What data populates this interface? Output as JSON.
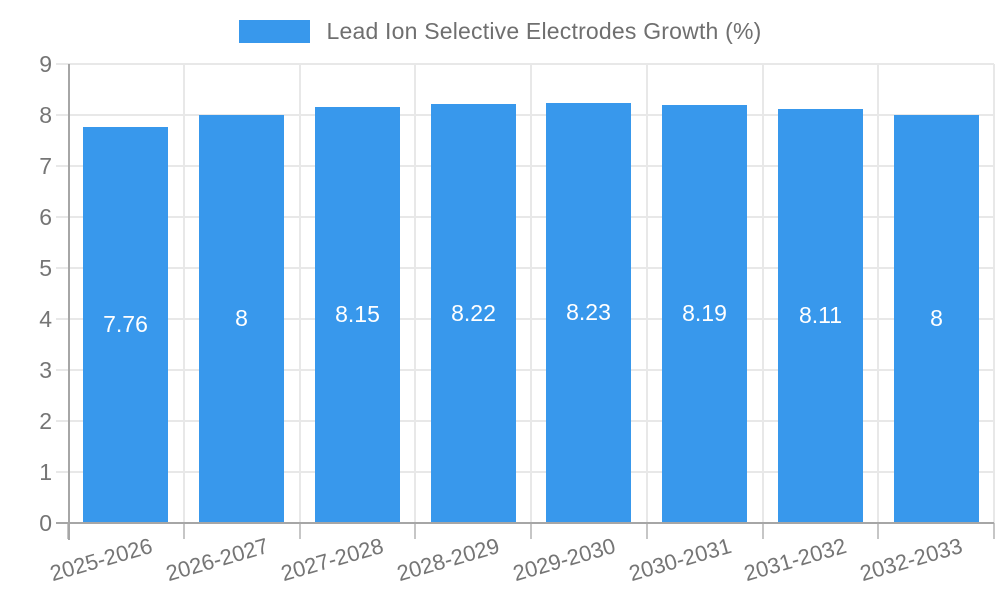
{
  "legend": {
    "label": "Lead Ion Selective Electrodes Growth (%)",
    "swatch_color": "#3898EC"
  },
  "chart_data": {
    "type": "bar",
    "title": "Lead Ion Selective Electrodes Growth (%)",
    "categories": [
      "2025-2026",
      "2026-2027",
      "2027-2028",
      "2028-2029",
      "2029-2030",
      "2030-2031",
      "2031-2032",
      "2032-2033"
    ],
    "series": [
      {
        "name": "Lead Ion Selective Electrodes Growth (%)",
        "values": [
          7.76,
          8,
          8.15,
          8.22,
          8.23,
          8.19,
          8.11,
          8
        ]
      }
    ],
    "value_labels": [
      "7.76",
      "8",
      "8.15",
      "8.22",
      "8.23",
      "8.19",
      "8.11",
      "8"
    ],
    "xlabel": "",
    "ylabel": "",
    "ylim": [
      0,
      9
    ],
    "yticks": [
      0,
      1,
      2,
      3,
      4,
      5,
      6,
      7,
      8,
      9
    ],
    "grid": true,
    "legend_position": "top",
    "x_label_rotation_deg": -16,
    "colors": {
      "bar": "#3898EC",
      "bar_value_label": "#ffffff",
      "axis_label": "#757575",
      "gridline": "#e8e8e8",
      "axis_line": "#a6a6a6"
    }
  }
}
